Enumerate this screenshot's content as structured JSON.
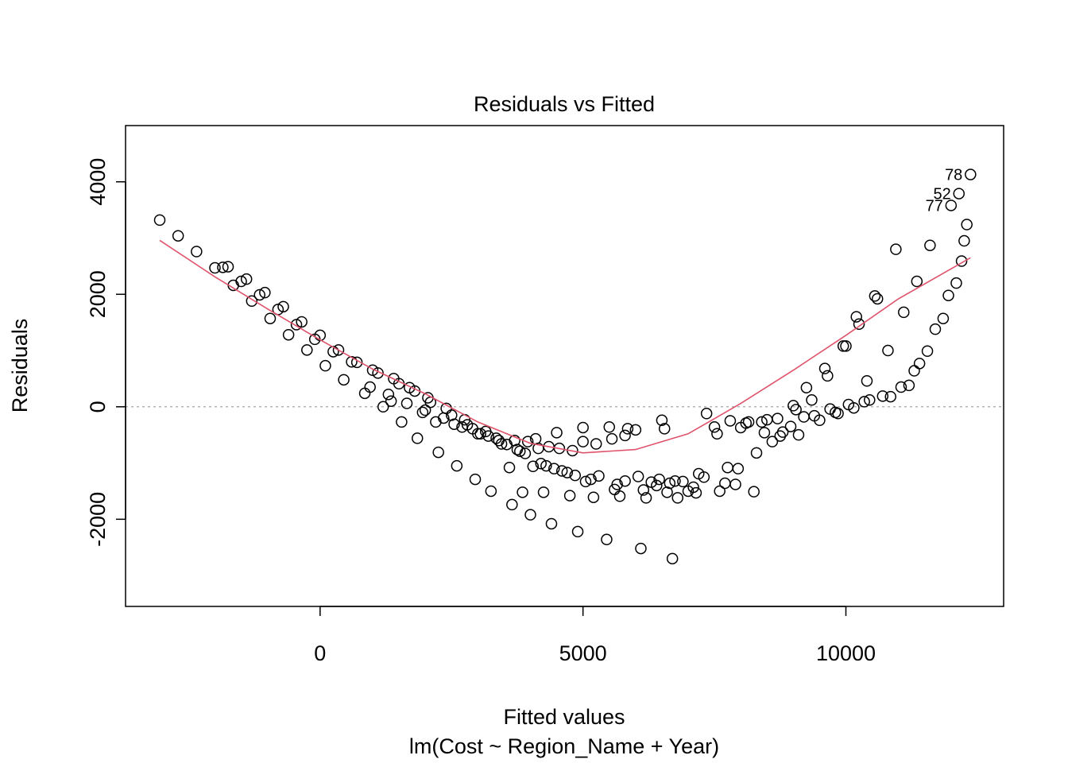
{
  "chart_data": {
    "type": "scatter",
    "title": "Residuals vs Fitted",
    "xlabel": "Fitted values",
    "subtitle": "lm(Cost ~ Region_Name + Year)",
    "ylabel": "Residuals",
    "xlim": [
      -3700,
      13000
    ],
    "ylim": [
      -3550,
      5000
    ],
    "xticks": [
      0,
      5000,
      10000
    ],
    "yticks": [
      -2000,
      0,
      2000,
      4000
    ],
    "xtick_labels": [
      "0",
      "5000",
      "10000"
    ],
    "ytick_labels": [
      "-2000",
      "0",
      "2000",
      "4000"
    ],
    "reference_line": {
      "y": 0,
      "style": "dotted",
      "color": "#b3b3b3"
    },
    "smooth_color": "#df536b",
    "point_color": "#000000",
    "labeled_points": [
      {
        "label": "78",
        "x": 12370,
        "y": 4130
      },
      {
        "label": "52",
        "x": 12150,
        "y": 3790
      },
      {
        "label": "77",
        "x": 12000,
        "y": 3580
      }
    ],
    "smooth": [
      [
        -3050,
        2960
      ],
      [
        -2000,
        2310
      ],
      [
        -1000,
        1740
      ],
      [
        0,
        1190
      ],
      [
        1000,
        670
      ],
      [
        2000,
        230
      ],
      [
        3000,
        -270
      ],
      [
        4000,
        -650
      ],
      [
        5000,
        -820
      ],
      [
        6000,
        -760
      ],
      [
        7000,
        -480
      ],
      [
        8000,
        60
      ],
      [
        9000,
        650
      ],
      [
        10000,
        1270
      ],
      [
        11000,
        1920
      ],
      [
        12370,
        2650
      ]
    ],
    "points": [
      [
        -3050,
        3320
      ],
      [
        -2700,
        3040
      ],
      [
        -2350,
        2760
      ],
      [
        -2000,
        2470
      ],
      [
        -1850,
        2480
      ],
      [
        -1750,
        2490
      ],
      [
        -1650,
        2160
      ],
      [
        -1500,
        2230
      ],
      [
        -1400,
        2270
      ],
      [
        -1300,
        1880
      ],
      [
        -1150,
        1990
      ],
      [
        -1050,
        2030
      ],
      [
        -950,
        1570
      ],
      [
        -800,
        1730
      ],
      [
        -700,
        1780
      ],
      [
        -600,
        1280
      ],
      [
        -450,
        1460
      ],
      [
        -350,
        1510
      ],
      [
        -250,
        1010
      ],
      [
        -100,
        1200
      ],
      [
        0,
        1270
      ],
      [
        100,
        730
      ],
      [
        250,
        980
      ],
      [
        350,
        1010
      ],
      [
        450,
        480
      ],
      [
        600,
        800
      ],
      [
        700,
        790
      ],
      [
        850,
        240
      ],
      [
        950,
        350
      ],
      [
        1000,
        650
      ],
      [
        1100,
        600
      ],
      [
        1200,
        0
      ],
      [
        1300,
        220
      ],
      [
        1350,
        100
      ],
      [
        1400,
        500
      ],
      [
        1500,
        410
      ],
      [
        1550,
        -270
      ],
      [
        1650,
        60
      ],
      [
        1700,
        340
      ],
      [
        1800,
        280
      ],
      [
        1850,
        -560
      ],
      [
        1950,
        -100
      ],
      [
        2000,
        -60
      ],
      [
        2050,
        160
      ],
      [
        2100,
        80
      ],
      [
        2200,
        -270
      ],
      [
        2250,
        -810
      ],
      [
        2350,
        -200
      ],
      [
        2400,
        -30
      ],
      [
        2500,
        -150
      ],
      [
        2550,
        -310
      ],
      [
        2600,
        -1050
      ],
      [
        2700,
        -360
      ],
      [
        2750,
        -230
      ],
      [
        2800,
        -320
      ],
      [
        2900,
        -390
      ],
      [
        2950,
        -1290
      ],
      [
        3000,
        -480
      ],
      [
        3050,
        -480
      ],
      [
        3150,
        -440
      ],
      [
        3200,
        -520
      ],
      [
        3250,
        -1500
      ],
      [
        3350,
        -560
      ],
      [
        3400,
        -600
      ],
      [
        3450,
        -660
      ],
      [
        3550,
        -670
      ],
      [
        3600,
        -1080
      ],
      [
        3650,
        -1740
      ],
      [
        3700,
        -600
      ],
      [
        3750,
        -760
      ],
      [
        3800,
        -790
      ],
      [
        3850,
        -1520
      ],
      [
        3900,
        -830
      ],
      [
        3950,
        -620
      ],
      [
        4000,
        -1920
      ],
      [
        4050,
        -1060
      ],
      [
        4100,
        -570
      ],
      [
        4150,
        -740
      ],
      [
        4200,
        -1010
      ],
      [
        4250,
        -1520
      ],
      [
        4300,
        -1050
      ],
      [
        4350,
        -710
      ],
      [
        4400,
        -2080
      ],
      [
        4450,
        -1100
      ],
      [
        4500,
        -460
      ],
      [
        4550,
        -740
      ],
      [
        4600,
        -1140
      ],
      [
        4700,
        -1170
      ],
      [
        4750,
        -1580
      ],
      [
        4800,
        -780
      ],
      [
        4850,
        -1220
      ],
      [
        4900,
        -2220
      ],
      [
        5000,
        -370
      ],
      [
        5000,
        -620
      ],
      [
        5050,
        -1330
      ],
      [
        5150,
        -1290
      ],
      [
        5200,
        -1610
      ],
      [
        5250,
        -660
      ],
      [
        5300,
        -1230
      ],
      [
        5450,
        -2360
      ],
      [
        5500,
        -360
      ],
      [
        5550,
        -570
      ],
      [
        5600,
        -1470
      ],
      [
        5650,
        -1380
      ],
      [
        5700,
        -1590
      ],
      [
        5800,
        -1320
      ],
      [
        5800,
        -510
      ],
      [
        5850,
        -390
      ],
      [
        6000,
        -410
      ],
      [
        6050,
        -1240
      ],
      [
        6100,
        -2520
      ],
      [
        6150,
        -1480
      ],
      [
        6200,
        -1620
      ],
      [
        6300,
        -1340
      ],
      [
        6400,
        -1400
      ],
      [
        6450,
        -1290
      ],
      [
        6500,
        -240
      ],
      [
        6550,
        -390
      ],
      [
        6600,
        -1520
      ],
      [
        6650,
        -1360
      ],
      [
        6700,
        -2700
      ],
      [
        6750,
        -1320
      ],
      [
        6800,
        -1620
      ],
      [
        6900,
        -1330
      ],
      [
        7000,
        -1500
      ],
      [
        7100,
        -1430
      ],
      [
        7150,
        -1530
      ],
      [
        7200,
        -1190
      ],
      [
        7300,
        -1250
      ],
      [
        7350,
        -120
      ],
      [
        7500,
        -360
      ],
      [
        7550,
        -480
      ],
      [
        7600,
        -1500
      ],
      [
        7700,
        -1360
      ],
      [
        7750,
        -1080
      ],
      [
        7800,
        -250
      ],
      [
        7900,
        -1380
      ],
      [
        7950,
        -1100
      ],
      [
        8000,
        -370
      ],
      [
        8100,
        -290
      ],
      [
        8150,
        -270
      ],
      [
        8250,
        -1510
      ],
      [
        8300,
        -820
      ],
      [
        8400,
        -270
      ],
      [
        8450,
        -460
      ],
      [
        8500,
        -230
      ],
      [
        8600,
        -620
      ],
      [
        8700,
        -210
      ],
      [
        8750,
        -520
      ],
      [
        8800,
        -450
      ],
      [
        8950,
        -350
      ],
      [
        9000,
        20
      ],
      [
        9050,
        -50
      ],
      [
        9100,
        -500
      ],
      [
        9200,
        -180
      ],
      [
        9250,
        340
      ],
      [
        9350,
        120
      ],
      [
        9400,
        -160
      ],
      [
        9500,
        -240
      ],
      [
        9600,
        680
      ],
      [
        9650,
        550
      ],
      [
        9700,
        -40
      ],
      [
        9800,
        -100
      ],
      [
        9850,
        -120
      ],
      [
        9950,
        1080
      ],
      [
        10000,
        1080
      ],
      [
        10050,
        40
      ],
      [
        10150,
        -20
      ],
      [
        10200,
        1600
      ],
      [
        10250,
        1470
      ],
      [
        10350,
        90
      ],
      [
        10400,
        460
      ],
      [
        10450,
        120
      ],
      [
        10550,
        1970
      ],
      [
        10600,
        1920
      ],
      [
        10700,
        190
      ],
      [
        10800,
        1000
      ],
      [
        10850,
        180
      ],
      [
        10950,
        2800
      ],
      [
        11050,
        350
      ],
      [
        11100,
        1680
      ],
      [
        11200,
        380
      ],
      [
        11300,
        640
      ],
      [
        11350,
        2230
      ],
      [
        11400,
        770
      ],
      [
        11550,
        990
      ],
      [
        11600,
        2870
      ],
      [
        11700,
        1380
      ],
      [
        11850,
        1570
      ],
      [
        11950,
        1980
      ],
      [
        12100,
        2200
      ],
      [
        12200,
        2590
      ],
      [
        12250,
        2950
      ],
      [
        12300,
        3240
      ],
      [
        12000,
        3580
      ],
      [
        12150,
        3790
      ],
      [
        12370,
        4130
      ]
    ]
  }
}
